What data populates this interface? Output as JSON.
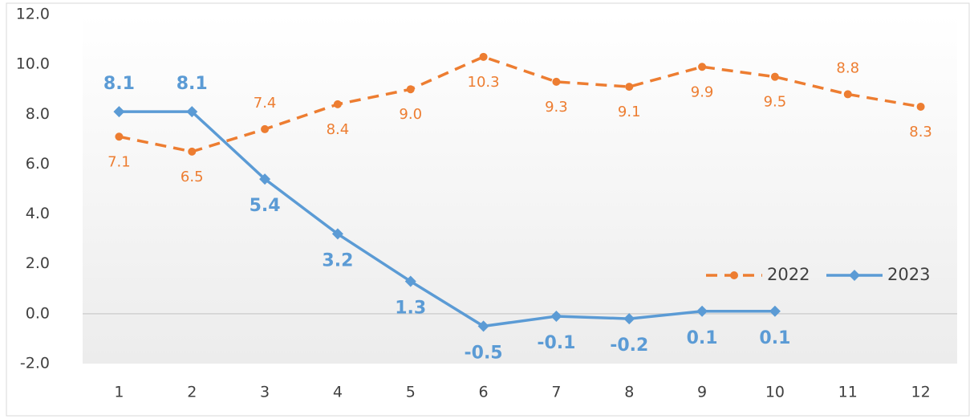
{
  "chart_data": {
    "type": "line",
    "categories": [
      "1",
      "2",
      "3",
      "4",
      "5",
      "6",
      "7",
      "8",
      "9",
      "10",
      "11",
      "12"
    ],
    "series": [
      {
        "name": "2022",
        "color": "#ed7d31",
        "dash": true,
        "marker": "circle",
        "values": [
          7.1,
          6.5,
          7.4,
          8.4,
          9.0,
          10.3,
          9.3,
          9.1,
          9.9,
          9.5,
          8.8,
          8.3
        ],
        "value_labels": [
          "7.1",
          "6.5",
          "7.4",
          "8.4",
          "9.0",
          "10.3",
          "9.3",
          "9.1",
          "9.9",
          "9.5",
          "8.8",
          "8.3"
        ]
      },
      {
        "name": "2023",
        "color": "#5b9bd5",
        "dash": false,
        "marker": "diamond",
        "values": [
          8.1,
          8.1,
          5.4,
          3.2,
          1.3,
          -0.5,
          -0.1,
          -0.2,
          0.1,
          0.1,
          null,
          null
        ],
        "value_labels": [
          "8.1",
          "8.1",
          "5.4",
          "3.2",
          "1.3",
          "-0.5",
          "-0.1",
          "-0.2",
          "0.1",
          "0.1",
          null,
          null
        ]
      }
    ],
    "ylim": [
      -2,
      12
    ],
    "yticks": [
      {
        "value": -2,
        "label": "-2.0"
      },
      {
        "value": 0,
        "label": "0.0"
      },
      {
        "value": 2,
        "label": "2.0"
      },
      {
        "value": 4,
        "label": "4.0"
      },
      {
        "value": 6,
        "label": "6.0"
      },
      {
        "value": 8,
        "label": "8.0"
      },
      {
        "value": 10,
        "label": "10.0"
      },
      {
        "value": 12,
        "label": "12.0"
      }
    ],
    "legend": "right"
  }
}
